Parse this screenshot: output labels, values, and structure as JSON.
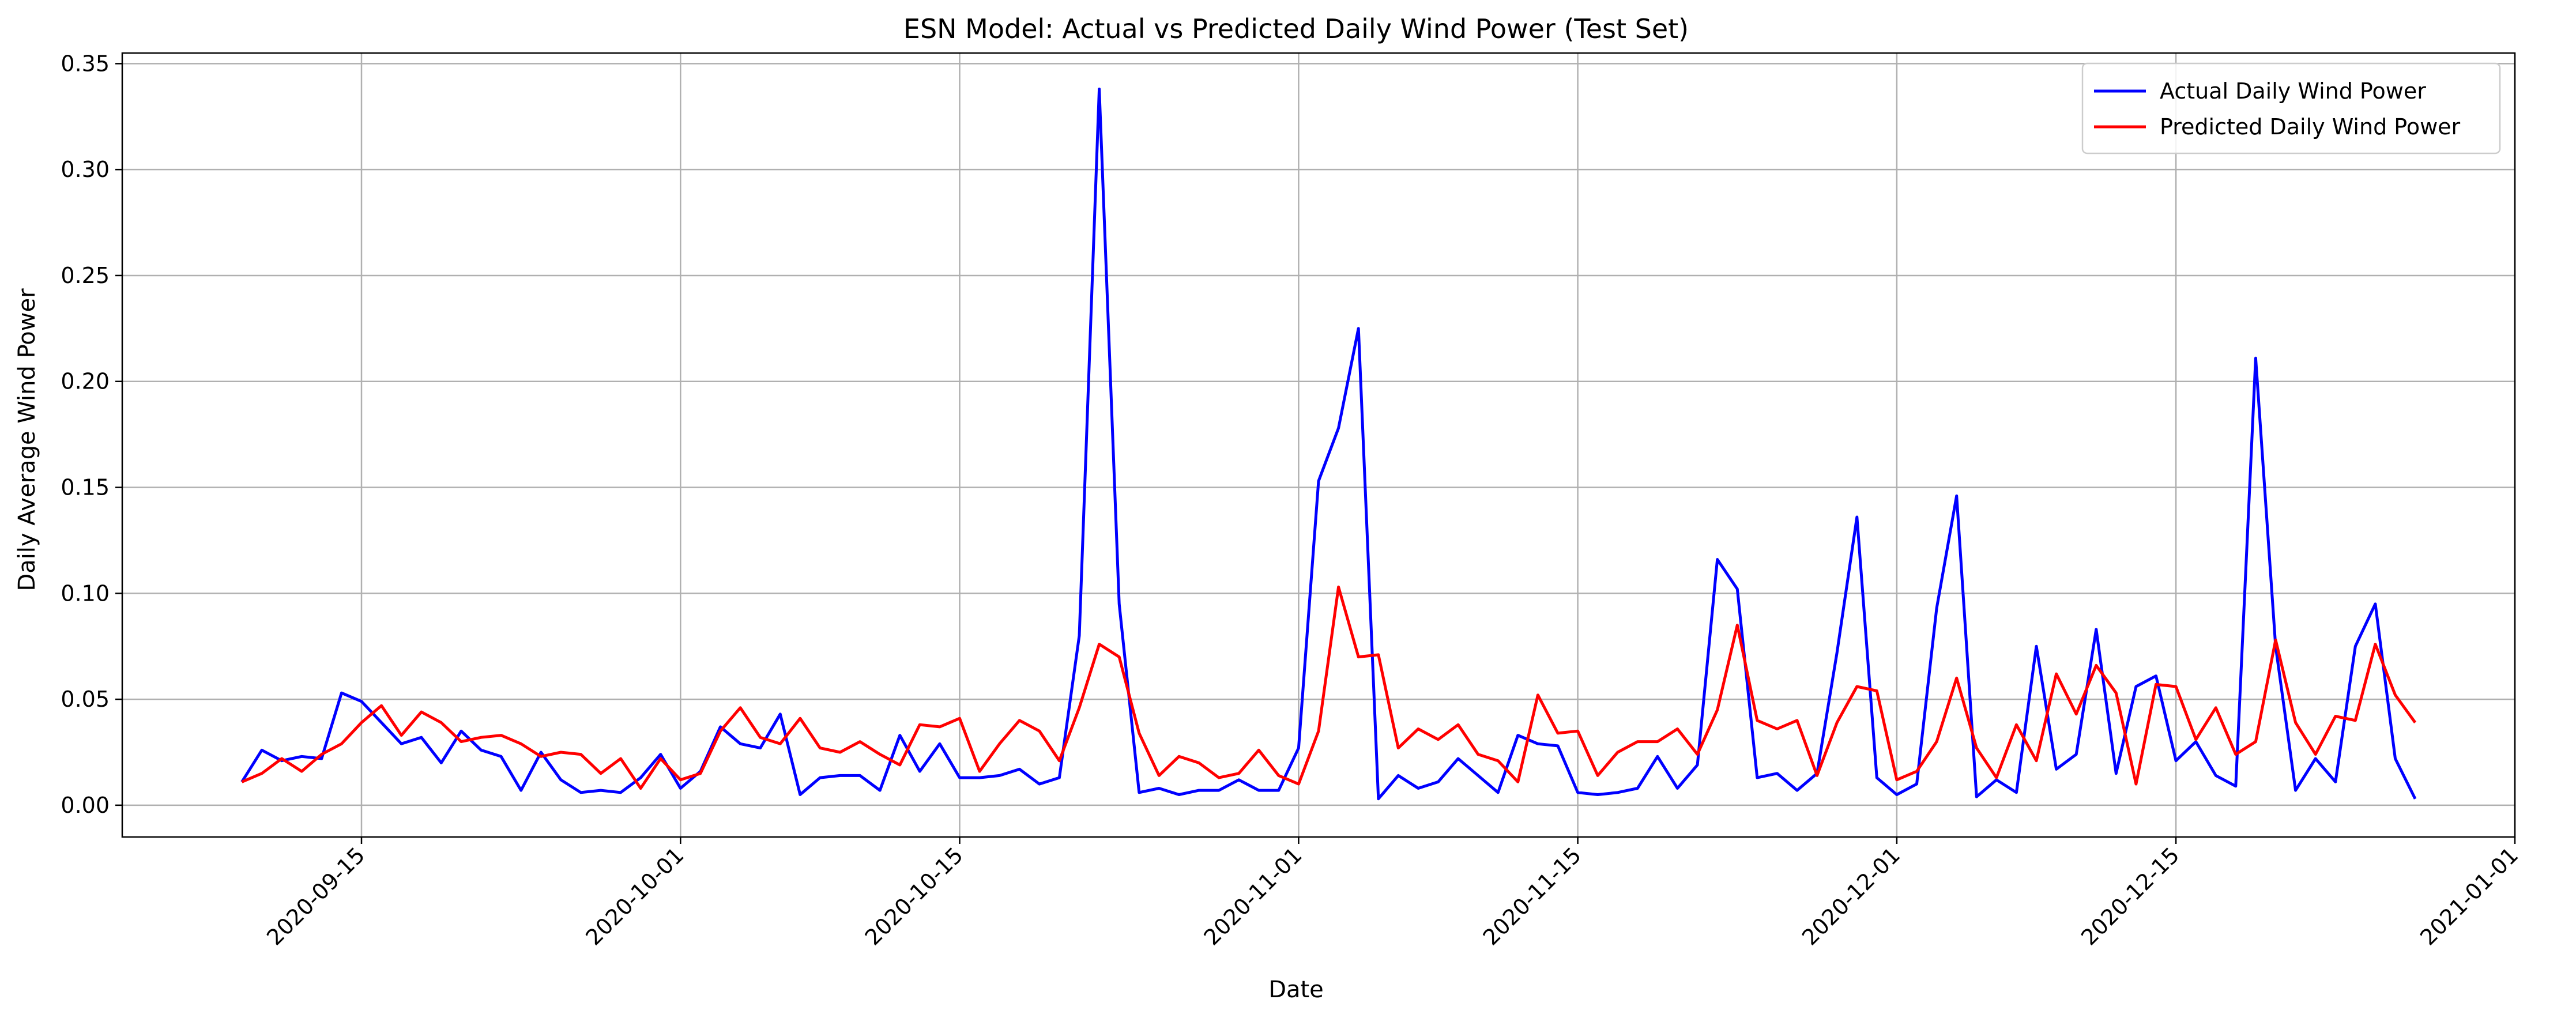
{
  "chart_data": {
    "type": "line",
    "title": "ESN Model: Actual vs Predicted Daily Wind Power (Test Set)",
    "xlabel": "Date",
    "ylabel": "Daily Average Wind Power",
    "x_start": "2020-09-09",
    "x": [
      "2020-09-09",
      "2020-09-10",
      "2020-09-11",
      "2020-09-12",
      "2020-09-13",
      "2020-09-14",
      "2020-09-15",
      "2020-09-16",
      "2020-09-17",
      "2020-09-18",
      "2020-09-19",
      "2020-09-20",
      "2020-09-21",
      "2020-09-22",
      "2020-09-23",
      "2020-09-24",
      "2020-09-25",
      "2020-09-26",
      "2020-09-27",
      "2020-09-28",
      "2020-09-29",
      "2020-09-30",
      "2020-10-01",
      "2020-10-02",
      "2020-10-03",
      "2020-10-04",
      "2020-10-05",
      "2020-10-06",
      "2020-10-07",
      "2020-10-08",
      "2020-10-09",
      "2020-10-10",
      "2020-10-11",
      "2020-10-12",
      "2020-10-13",
      "2020-10-14",
      "2020-10-15",
      "2020-10-16",
      "2020-10-17",
      "2020-10-18",
      "2020-10-19",
      "2020-10-20",
      "2020-10-21",
      "2020-10-22",
      "2020-10-23",
      "2020-10-24",
      "2020-10-25",
      "2020-10-26",
      "2020-10-27",
      "2020-10-28",
      "2020-10-29",
      "2020-10-30",
      "2020-10-31",
      "2020-11-01",
      "2020-11-02",
      "2020-11-03",
      "2020-11-04",
      "2020-11-05",
      "2020-11-06",
      "2020-11-07",
      "2020-11-08",
      "2020-11-09",
      "2020-11-10",
      "2020-11-11",
      "2020-11-12",
      "2020-11-13",
      "2020-11-14",
      "2020-11-15",
      "2020-11-16",
      "2020-11-17",
      "2020-11-18",
      "2020-11-19",
      "2020-11-20",
      "2020-11-21",
      "2020-11-22",
      "2020-11-23",
      "2020-11-24",
      "2020-11-25",
      "2020-11-26",
      "2020-11-27",
      "2020-11-28",
      "2020-11-29",
      "2020-11-30",
      "2020-12-01",
      "2020-12-02",
      "2020-12-03",
      "2020-12-04",
      "2020-12-05",
      "2020-12-06",
      "2020-12-07",
      "2020-12-08",
      "2020-12-09",
      "2020-12-10",
      "2020-12-11",
      "2020-12-12",
      "2020-12-13",
      "2020-12-14",
      "2020-12-15",
      "2020-12-16",
      "2020-12-17",
      "2020-12-18",
      "2020-12-19",
      "2020-12-20",
      "2020-12-21",
      "2020-12-22",
      "2020-12-23",
      "2020-12-24",
      "2020-12-25",
      "2020-12-26",
      "2020-12-27"
    ],
    "series": [
      {
        "name": "Actual Daily Wind Power",
        "color": "#0000ff",
        "values": [
          0.011,
          0.026,
          0.021,
          0.023,
          0.022,
          0.053,
          0.049,
          0.039,
          0.029,
          0.032,
          0.02,
          0.035,
          0.026,
          0.023,
          0.007,
          0.025,
          0.012,
          0.006,
          0.007,
          0.006,
          0.013,
          0.024,
          0.008,
          0.016,
          0.037,
          0.029,
          0.027,
          0.043,
          0.005,
          0.013,
          0.014,
          0.014,
          0.007,
          0.033,
          0.016,
          0.029,
          0.013,
          0.013,
          0.014,
          0.017,
          0.01,
          0.013,
          0.08,
          0.338,
          0.095,
          0.006,
          0.008,
          0.005,
          0.007,
          0.007,
          0.012,
          0.007,
          0.007,
          0.027,
          0.153,
          0.178,
          0.225,
          0.003,
          0.014,
          0.008,
          0.011,
          0.022,
          0.014,
          0.006,
          0.033,
          0.029,
          0.028,
          0.006,
          0.005,
          0.006,
          0.008,
          0.023,
          0.008,
          0.019,
          0.116,
          0.102,
          0.013,
          0.015,
          0.007,
          0.015,
          0.072,
          0.136,
          0.013,
          0.005,
          0.01,
          0.093,
          0.146,
          0.004,
          0.012,
          0.006,
          0.075,
          0.017,
          0.024,
          0.083,
          0.015,
          0.056,
          0.061,
          0.021,
          0.03,
          0.014,
          0.009,
          0.211,
          0.075,
          0.007,
          0.022,
          0.011,
          0.075,
          0.095,
          0.022,
          0.003
        ]
      },
      {
        "name": "Predicted Daily Wind Power",
        "color": "#ff0000",
        "values": [
          0.011,
          0.015,
          0.022,
          0.016,
          0.024,
          0.029,
          0.039,
          0.047,
          0.033,
          0.044,
          0.039,
          0.03,
          0.032,
          0.033,
          0.029,
          0.023,
          0.025,
          0.024,
          0.015,
          0.022,
          0.008,
          0.022,
          0.012,
          0.015,
          0.035,
          0.046,
          0.032,
          0.029,
          0.041,
          0.027,
          0.025,
          0.03,
          0.024,
          0.019,
          0.038,
          0.037,
          0.041,
          0.016,
          0.029,
          0.04,
          0.035,
          0.021,
          0.046,
          0.076,
          0.07,
          0.034,
          0.014,
          0.023,
          0.02,
          0.013,
          0.015,
          0.026,
          0.014,
          0.01,
          0.035,
          0.103,
          0.07,
          0.071,
          0.027,
          0.036,
          0.031,
          0.038,
          0.024,
          0.021,
          0.011,
          0.052,
          0.034,
          0.035,
          0.014,
          0.025,
          0.03,
          0.03,
          0.036,
          0.024,
          0.045,
          0.085,
          0.04,
          0.036,
          0.04,
          0.014,
          0.039,
          0.056,
          0.054,
          0.012,
          0.016,
          0.03,
          0.06,
          0.027,
          0.013,
          0.038,
          0.021,
          0.062,
          0.043,
          0.066,
          0.053,
          0.01,
          0.057,
          0.056,
          0.031,
          0.046,
          0.024,
          0.03,
          0.078,
          0.039,
          0.024,
          0.042,
          0.04,
          0.076,
          0.052,
          0.039
        ]
      }
    ],
    "x_ticks": [
      "2020-09-15",
      "2020-10-01",
      "2020-10-15",
      "2020-11-01",
      "2020-11-15",
      "2020-12-01",
      "2020-12-15",
      "2021-01-01"
    ],
    "y_ticks": [
      0.0,
      0.05,
      0.1,
      0.15,
      0.2,
      0.25,
      0.3,
      0.35
    ],
    "y_tick_labels": [
      "0.00",
      "0.05",
      "0.10",
      "0.15",
      "0.20",
      "0.25",
      "0.30",
      "0.35"
    ],
    "xlim": [
      "2020-09-03",
      "2021-01-01"
    ],
    "ylim": [
      -0.015,
      0.355
    ],
    "grid": true,
    "legend_position": "top-right"
  }
}
